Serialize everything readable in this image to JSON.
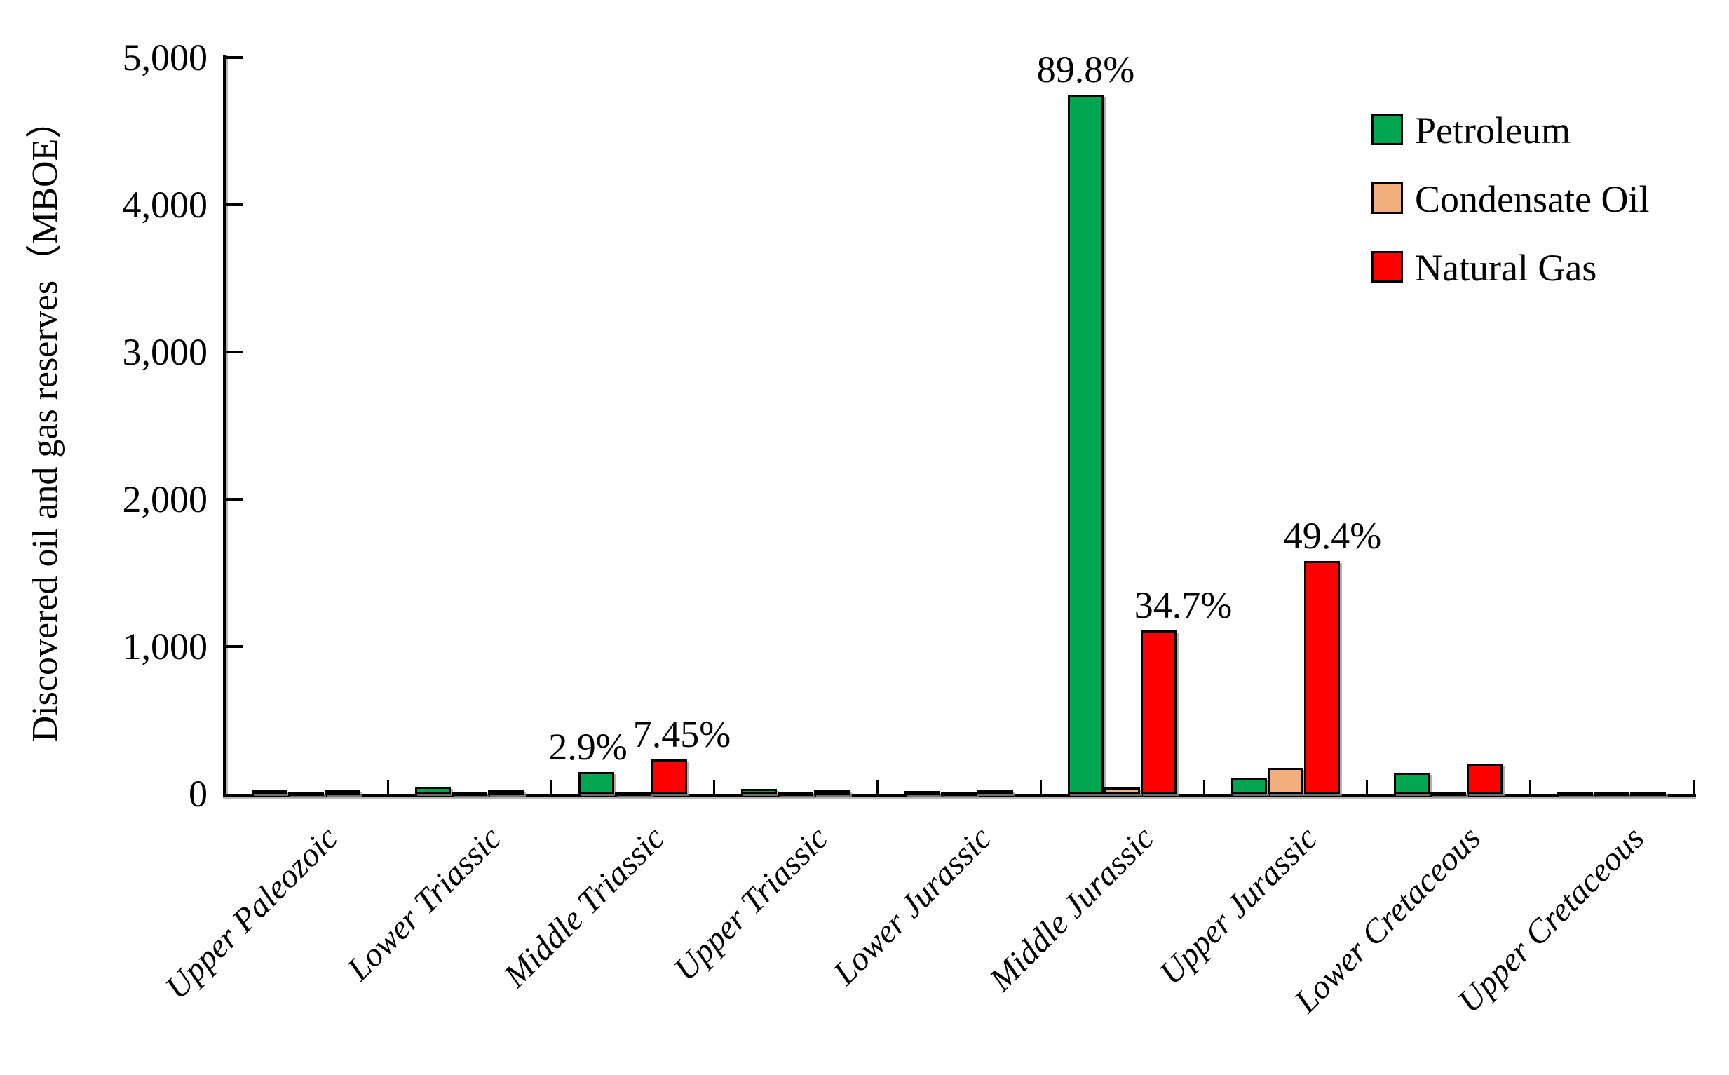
{
  "y_axis": {
    "title": "Discovered oil and gas reserves（MBOE）",
    "tick_labels": [
      "5,000",
      "4,000",
      "3,000",
      "2,000",
      "1,000",
      "0"
    ]
  },
  "legend": {
    "items": [
      {
        "label": "Petroleum",
        "color": "#00A650"
      },
      {
        "label": "Condensate Oil",
        "color": "#F2AE7E"
      },
      {
        "label": "Natural Gas",
        "color": "#FF0000"
      }
    ]
  },
  "chart_data": {
    "type": "bar",
    "title": "",
    "xlabel": "",
    "ylabel": "Discovered oil and gas reserves（MBOE）",
    "ylim": [
      0,
      5000
    ],
    "ytick_interval": 1000,
    "grid": false,
    "legend_position": "top-right",
    "categories": [
      "Upper Paleozoic",
      "Lower Triassic",
      "Middle Triassic",
      "Upper Triassic",
      "Lower Jurassic",
      "Middle Jurassic",
      "Upper Jurassic",
      "Lower Cretaceous",
      "Upper Cretaceous"
    ],
    "series": [
      {
        "name": "Petroleum",
        "color": "#00A650",
        "values": [
          30,
          50,
          150,
          35,
          20,
          4750,
          110,
          145,
          10
        ]
      },
      {
        "name": "Condensate Oil",
        "color": "#F2AE7E",
        "values": [
          5,
          5,
          15,
          5,
          10,
          45,
          175,
          5,
          5
        ]
      },
      {
        "name": "Natural Gas",
        "color": "#FF0000",
        "values": [
          25,
          25,
          235,
          25,
          30,
          1110,
          1580,
          205,
          10
        ]
      }
    ],
    "annotations": [
      {
        "text": "2.9%",
        "series": 0,
        "category": 2
      },
      {
        "text": "7.45%",
        "series": 2,
        "category": 2
      },
      {
        "text": "89.8%",
        "series": 0,
        "category": 5
      },
      {
        "text": "34.7%",
        "series": 2,
        "category": 5
      },
      {
        "text": "49.4%",
        "series": 2,
        "category": 6
      }
    ]
  }
}
